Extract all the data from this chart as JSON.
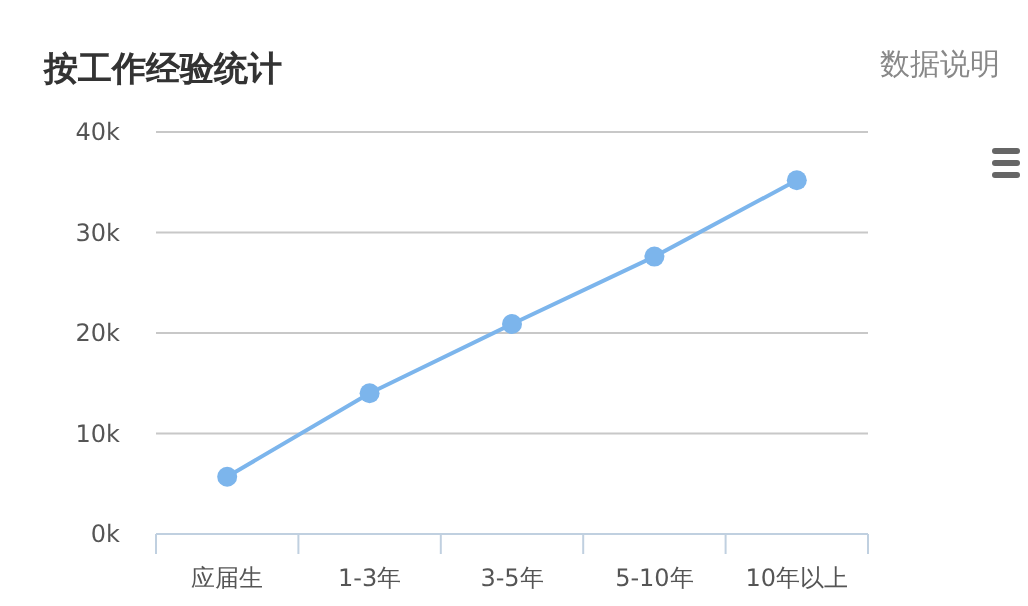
{
  "chart_data": {
    "type": "line",
    "title": "按工作经验统计",
    "annotations": [
      "数据说明"
    ],
    "categories": [
      "应届生",
      "1-3年",
      "3-5年",
      "5-10年",
      "10年以上"
    ],
    "series": [
      {
        "color": "#7cb5ec",
        "values": [
          5700,
          14000,
          20900,
          27600,
          35200
        ]
      }
    ],
    "ylim": [
      0,
      40000
    ],
    "yticks": [
      {
        "value": 0,
        "label": "0k"
      },
      {
        "value": 10000,
        "label": "10k"
      },
      {
        "value": 20000,
        "label": "20k"
      },
      {
        "value": 30000,
        "label": "30k"
      },
      {
        "value": 40000,
        "label": "40k"
      }
    ],
    "grid": "y",
    "marker": "circle"
  }
}
